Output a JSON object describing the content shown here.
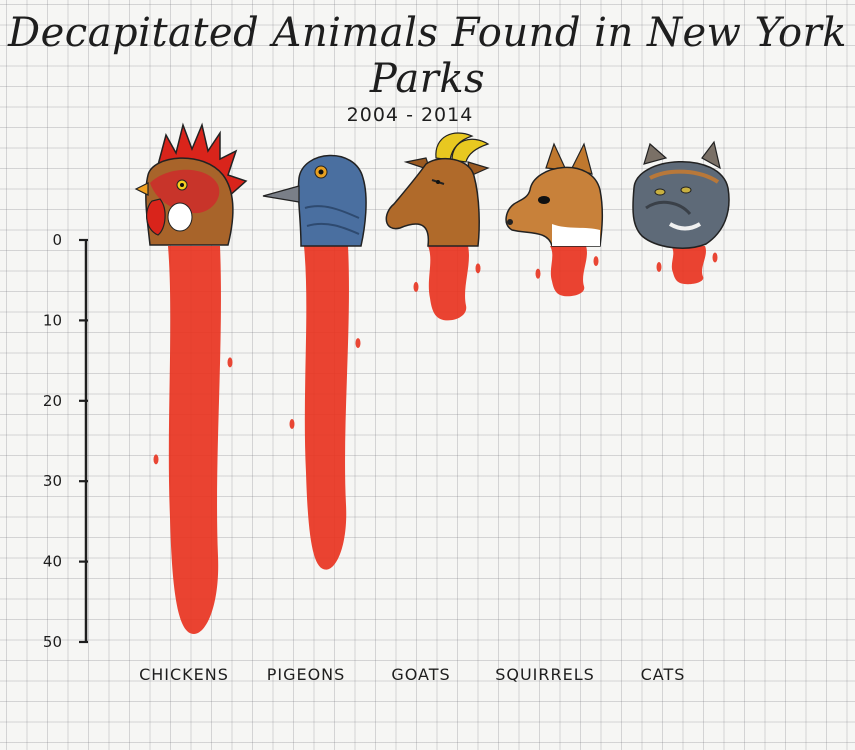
{
  "chart_data": {
    "type": "bar",
    "title": "Decapitated Animals Found in New York Parks",
    "subtitle": "2004 - 2014",
    "categories": [
      "CHICKENS",
      "PIGEONS",
      "GOATS",
      "SQUIRRELS",
      "CATS"
    ],
    "values": [
      49,
      41,
      10,
      7,
      5.5
    ],
    "ylim": [
      0,
      50
    ],
    "yticks": [
      0,
      10,
      20,
      30,
      40,
      50
    ],
    "y_inverted": true,
    "grid": true,
    "bar_color": "#e8331f"
  },
  "colors": {
    "blood": "#e8331f",
    "ink": "#1e1e1e",
    "paper": "#f6f6f4"
  },
  "icons": [
    "rooster-head-icon",
    "pigeon-head-icon",
    "goat-head-icon",
    "squirrel-head-icon",
    "cat-head-icon"
  ]
}
